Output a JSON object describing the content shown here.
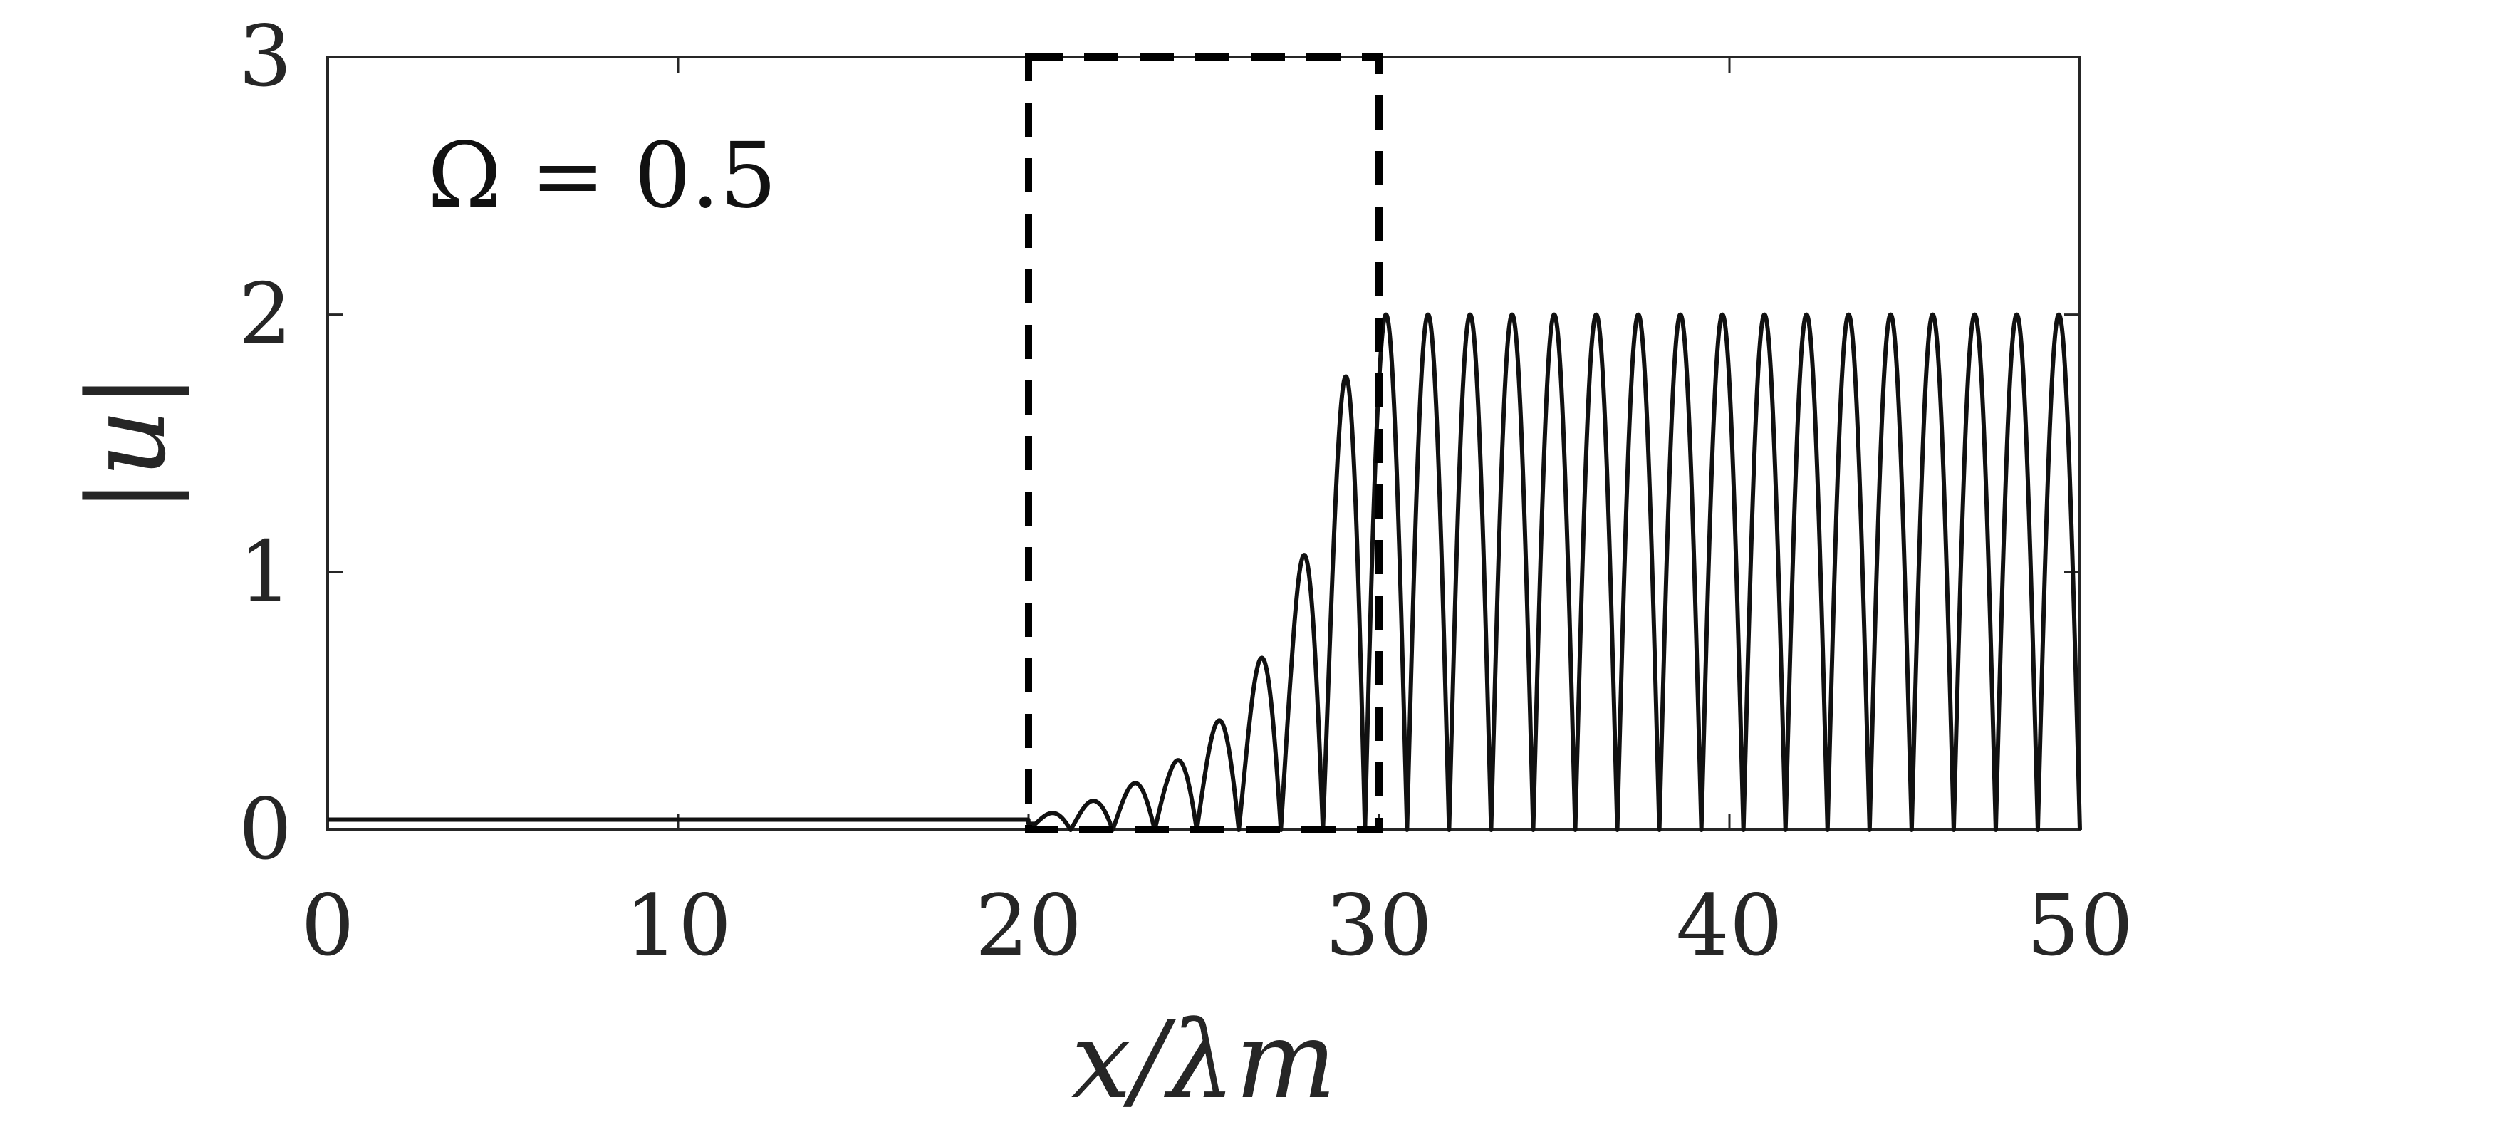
{
  "chart_data": {
    "type": "line",
    "title": "",
    "xlabel": "x/λm",
    "ylabel": "|u|",
    "xlim": [
      0,
      50
    ],
    "ylim": [
      0,
      3
    ],
    "xticks": [
      "0",
      "10",
      "20",
      "30",
      "40",
      "50"
    ],
    "yticks": [
      "0",
      "1",
      "2",
      "3"
    ],
    "grid": false,
    "annotations": [
      {
        "text": "Ω = 0.5",
        "x": 3,
        "y": 2.5
      }
    ],
    "highlight_region": {
      "style": "dashed",
      "x": [
        20,
        30
      ],
      "y": [
        0,
        3
      ]
    },
    "series": [
      {
        "color": "#111111",
        "model": "piecewise",
        "flat_segment": {
          "x": [
            0,
            20
          ],
          "y": 0.04
        },
        "growth_segment": {
          "x": [
            20,
            30
          ],
          "period": 1.2,
          "envelope_points": [
            [
              20,
              0.04
            ],
            [
              22,
              0.12
            ],
            [
              24,
              0.24
            ],
            [
              26,
              0.5
            ],
            [
              27.5,
              0.9
            ],
            [
              28.5,
              1.4
            ],
            [
              29.6,
              2.15
            ],
            [
              30,
              2.0
            ]
          ]
        },
        "steady_segment": {
          "x": [
            30,
            50
          ],
          "amplitude": 2.0,
          "period": 1.2
        }
      }
    ]
  }
}
